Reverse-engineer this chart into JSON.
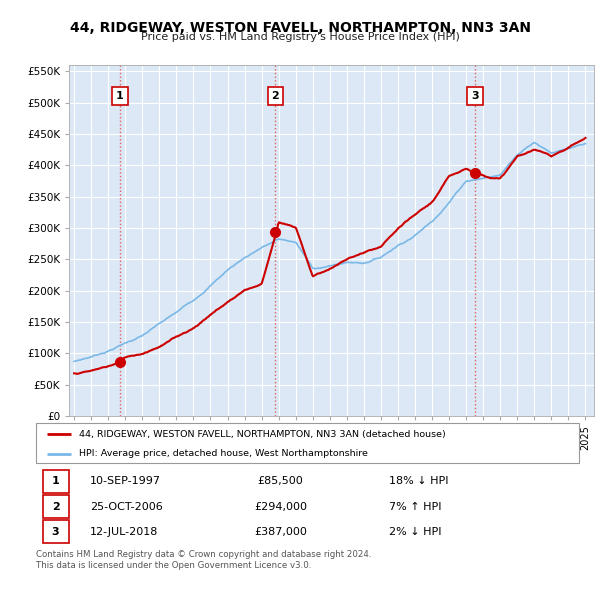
{
  "title": "44, RIDGEWAY, WESTON FAVELL, NORTHAMPTON, NN3 3AN",
  "subtitle": "Price paid vs. HM Land Registry's House Price Index (HPI)",
  "sale_dates_num": [
    1997.69,
    2006.81,
    2018.53
  ],
  "sale_prices": [
    85500,
    294000,
    387000
  ],
  "sale_labels": [
    "1",
    "2",
    "3"
  ],
  "sale_info": [
    [
      "1",
      "10-SEP-1997",
      "£85,500",
      "18% ↓ HPI"
    ],
    [
      "2",
      "25-OCT-2006",
      "£294,000",
      "7% ↑ HPI"
    ],
    [
      "3",
      "12-JUL-2018",
      "£387,000",
      "2% ↓ HPI"
    ]
  ],
  "legend_line1": "44, RIDGEWAY, WESTON FAVELL, NORTHAMPTON, NN3 3AN (detached house)",
  "legend_line2": "HPI: Average price, detached house, West Northamptonshire",
  "footer1": "Contains HM Land Registry data © Crown copyright and database right 2024.",
  "footer2": "This data is licensed under the Open Government Licence v3.0.",
  "hpi_color": "#7ab8e8",
  "price_color": "#cc0000",
  "vline_color": "#e06060",
  "bg_color": "#dce8f5",
  "plot_bg": "#dce8f5",
  "grid_color": "#ffffff",
  "ylim": [
    0,
    560000
  ],
  "yticks": [
    0,
    50000,
    100000,
    150000,
    200000,
    250000,
    300000,
    350000,
    400000,
    450000,
    500000,
    550000
  ],
  "ytick_labels": [
    "£0",
    "£50K",
    "£100K",
    "£150K",
    "£200K",
    "£250K",
    "£300K",
    "£350K",
    "£400K",
    "£450K",
    "£500K",
    "£550K"
  ],
  "hpi_anchors_x": [
    1995,
    1996,
    1997,
    1998,
    1999,
    2000,
    2001,
    2002,
    2003,
    2004,
    2005,
    2006,
    2007,
    2008,
    2009,
    2010,
    2011,
    2012,
    2013,
    2014,
    2015,
    2016,
    2017,
    2018,
    2019,
    2020,
    2021,
    2022,
    2023,
    2024,
    2025
  ],
  "hpi_anchors_y": [
    87000,
    95000,
    105000,
    118000,
    130000,
    148000,
    165000,
    185000,
    210000,
    235000,
    255000,
    272000,
    285000,
    280000,
    238000,
    242000,
    248000,
    248000,
    258000,
    278000,
    295000,
    318000,
    350000,
    385000,
    390000,
    395000,
    430000,
    450000,
    435000,
    440000,
    445000
  ],
  "red_anchors_x": [
    1995,
    1996,
    1997,
    1997.69,
    1998,
    1999,
    2000,
    2001,
    2002,
    2003,
    2004,
    2005,
    2006,
    2006.81,
    2007,
    2008,
    2009,
    2010,
    2011,
    2012,
    2013,
    2014,
    2015,
    2016,
    2017,
    2018,
    2018.53,
    2019,
    2020,
    2021,
    2022,
    2023,
    2024,
    2025
  ],
  "red_anchors_y": [
    68000,
    72000,
    79000,
    85500,
    93000,
    100000,
    113000,
    128000,
    143000,
    165000,
    185000,
    205000,
    215000,
    294000,
    315000,
    305000,
    228000,
    240000,
    255000,
    265000,
    272000,
    300000,
    320000,
    340000,
    380000,
    395000,
    387000,
    385000,
    380000,
    415000,
    425000,
    415000,
    430000,
    445000
  ]
}
